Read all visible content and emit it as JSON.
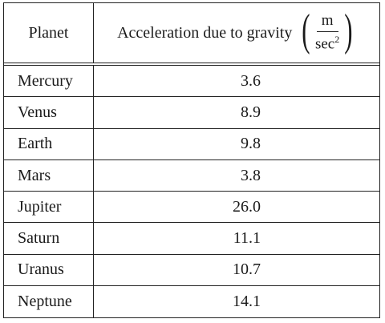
{
  "table": {
    "header": {
      "planet_label": "Planet",
      "accel_label": "Acceleration due to gravity",
      "unit_numerator": "m",
      "unit_denominator": "sec",
      "unit_exponent": "2"
    },
    "rows": [
      {
        "planet": "Mercury",
        "value": "3.6"
      },
      {
        "planet": "Venus",
        "value": "8.9"
      },
      {
        "planet": "Earth",
        "value": "9.8"
      },
      {
        "planet": "Mars",
        "value": "3.8"
      },
      {
        "planet": "Jupiter",
        "value": "26.0"
      },
      {
        "planet": "Saturn",
        "value": "11.1"
      },
      {
        "planet": "Uranus",
        "value": "10.7"
      },
      {
        "planet": "Neptune",
        "value": "14.1"
      }
    ]
  }
}
